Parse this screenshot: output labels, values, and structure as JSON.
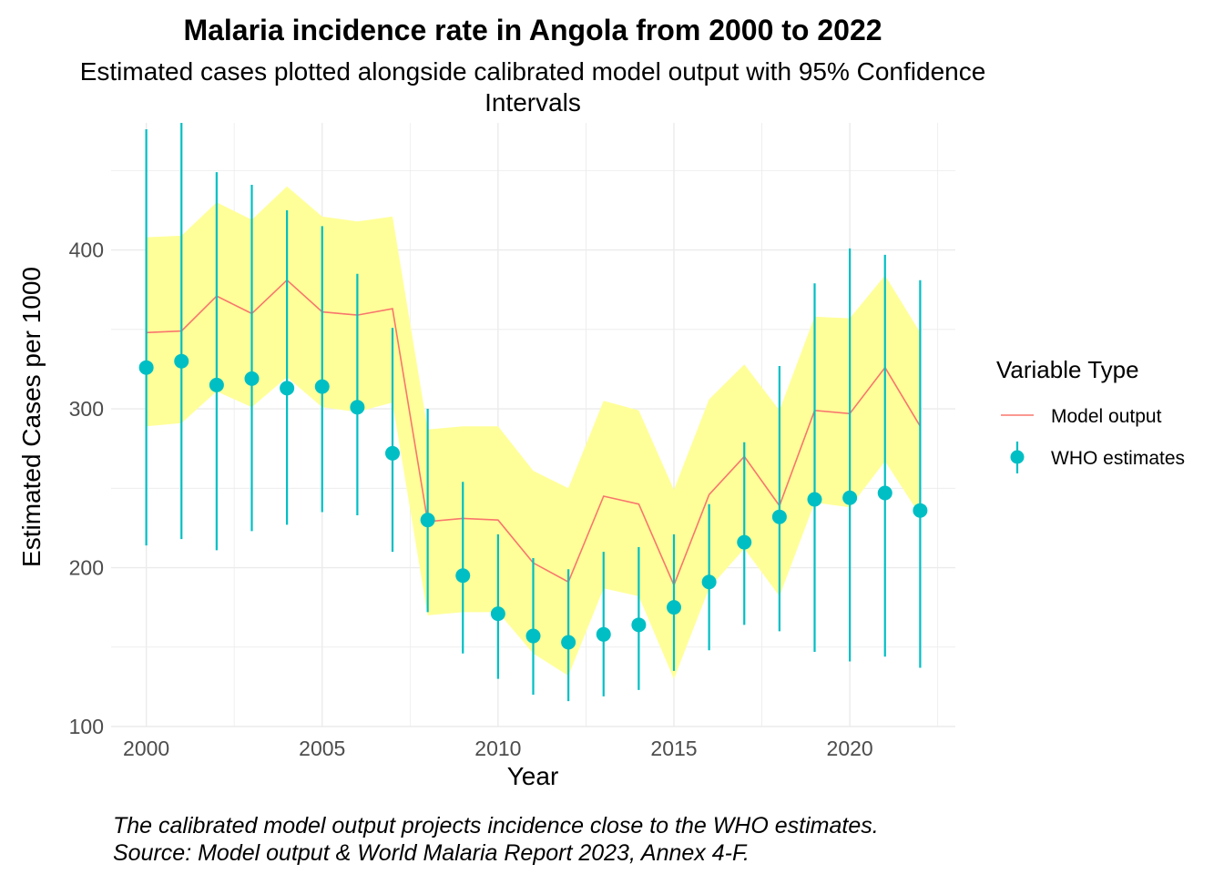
{
  "chart_data": {
    "type": "line",
    "title": "Malaria incidence rate in Angola from 2000 to 2022",
    "subtitle_lines": [
      "Estimated cases plotted alongside calibrated model output with 95% Confidence",
      "Intervals"
    ],
    "xlabel": "Year",
    "ylabel": "Estimated Cases per 1000",
    "caption_lines": [
      "The calibrated model output projects incidence close to the WHO estimates.",
      "Source: Model output & World Malaria Report 2023, Annex 4-F."
    ],
    "xlim": [
      1999,
      2023
    ],
    "ylim": [
      100,
      480
    ],
    "x_ticks": [
      2000,
      2005,
      2010,
      2015,
      2020
    ],
    "y_ticks": [
      100,
      200,
      300,
      400
    ],
    "grid": true,
    "legend": {
      "title": "Variable Type",
      "placement": "right",
      "entries": [
        {
          "label": "Model output",
          "type": "line",
          "color": "#F8766D"
        },
        {
          "label": "WHO estimates",
          "type": "pointrange",
          "color": "#00BFC4"
        }
      ]
    },
    "colors": {
      "model_line": "#F8766D",
      "who": "#00BFC4",
      "ribbon": "#FFFF99",
      "grid": "#EBEBEB"
    },
    "x": [
      2000,
      2001,
      2002,
      2003,
      2004,
      2005,
      2006,
      2007,
      2008,
      2009,
      2010,
      2011,
      2012,
      2013,
      2014,
      2015,
      2016,
      2017,
      2018,
      2019,
      2020,
      2021,
      2022
    ],
    "series": [
      {
        "name": "Model output",
        "kind": "line",
        "values": [
          348,
          349,
          371,
          360,
          381,
          361,
          359,
          363,
          229,
          231,
          230,
          203,
          191,
          245,
          240,
          189,
          246,
          270,
          239,
          299,
          297,
          326,
          289
        ],
        "ribbon_lower": [
          289,
          291,
          311,
          301,
          320,
          301,
          298,
          304,
          170,
          172,
          172,
          146,
          132,
          187,
          182,
          130,
          187,
          212,
          182,
          241,
          238,
          267,
          233
        ],
        "ribbon_upper": [
          408,
          409,
          430,
          419,
          440,
          421,
          418,
          421,
          287,
          289,
          289,
          261,
          250,
          305,
          299,
          249,
          306,
          328,
          299,
          358,
          357,
          384,
          348
        ]
      },
      {
        "name": "WHO estimates",
        "kind": "pointrange",
        "values": [
          326,
          330,
          315,
          319,
          313,
          314,
          301,
          272,
          230,
          195,
          171,
          157,
          153,
          158,
          164,
          175,
          191,
          216,
          232,
          243,
          244,
          247,
          236
        ],
        "lower": [
          214,
          218,
          211,
          223,
          227,
          235,
          233,
          210,
          172,
          146,
          130,
          120,
          116,
          119,
          123,
          135,
          148,
          164,
          160,
          147,
          141,
          144,
          137
        ],
        "upper": [
          476,
          480,
          449,
          441,
          425,
          415,
          385,
          351,
          300,
          254,
          221,
          206,
          199,
          210,
          213,
          221,
          240,
          279,
          327,
          379,
          401,
          397,
          381
        ]
      }
    ]
  }
}
